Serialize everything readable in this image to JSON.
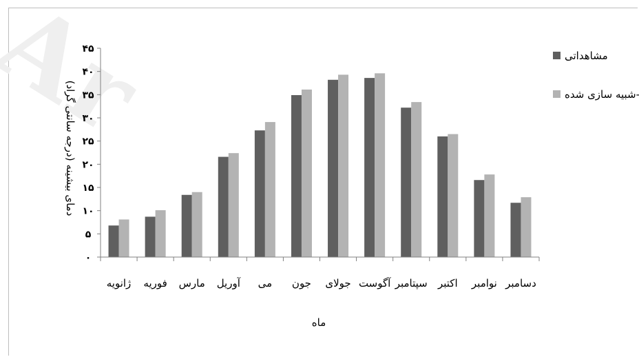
{
  "watermark": "Ar",
  "chart_data": {
    "type": "bar",
    "title": "",
    "xlabel": "ماه",
    "ylabel": "دمای بیشینه (درجه سانتی گراد)",
    "ylim": [
      0,
      45
    ],
    "yticks": [
      "۰",
      "۵",
      "۱۰",
      "۱۵",
      "۲۰",
      "۲۵",
      "۳۰",
      "۳۵",
      "۴۰",
      "۴۵"
    ],
    "grid": false,
    "legend_position": "top-right",
    "categories": [
      "ژانویه",
      "فوریه",
      "مارس",
      "آوریل",
      "می",
      "جون",
      "جولای",
      "آگوست",
      "سپتامبر",
      "اکتبر",
      "نوامبر",
      "دسامبر"
    ],
    "series": [
      {
        "name": "مشاهداتی",
        "color": "#5f5f5f",
        "values": [
          6.8,
          8.7,
          13.4,
          21.6,
          27.3,
          34.9,
          38.2,
          38.6,
          32.2,
          26.0,
          16.6,
          11.7
        ]
      },
      {
        "name": "شبیه سازی شده-NCEP",
        "color": "#b3b3b3",
        "values": [
          8.1,
          10.1,
          14.0,
          22.4,
          29.1,
          36.1,
          39.3,
          39.6,
          33.4,
          26.5,
          17.8,
          12.9
        ]
      }
    ]
  }
}
